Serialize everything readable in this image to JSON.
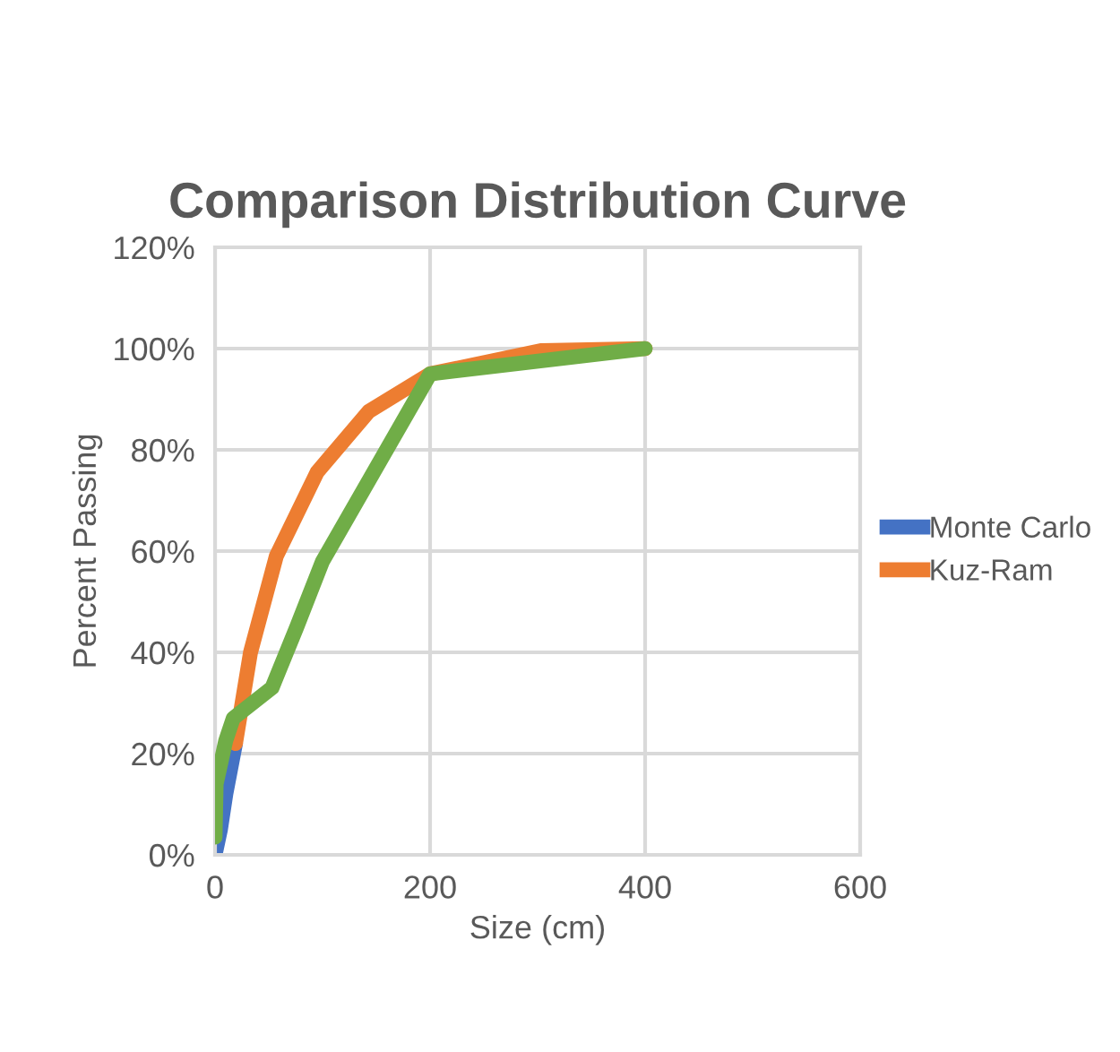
{
  "chart_data": {
    "type": "line",
    "title": "Comparison Distribution Curve",
    "xlabel": "Size (cm)",
    "ylabel": "Percent Passing",
    "series": [
      {
        "name": "Monte Carlo",
        "color": "#4472c4",
        "x": [
          0,
          5,
          10,
          19
        ],
        "values": [
          0,
          5,
          12,
          22
        ]
      },
      {
        "name": "Kuz-Ram",
        "color": "#ed7d31",
        "x": [
          19,
          33,
          57,
          95,
          143,
          200,
          304,
          400
        ],
        "values": [
          22,
          40,
          59,
          75.6,
          87.6,
          95,
          99.6,
          100
        ]
      },
      {
        "color": "#70ad47",
        "x": [
          0,
          1,
          10,
          17,
          53,
          76,
          100,
          200,
          400
        ],
        "values": [
          3.5,
          14,
          22.6,
          27,
          33,
          45,
          58,
          95,
          100
        ]
      }
    ],
    "xlim": [
      0,
      600
    ],
    "xticks": [
      0,
      200,
      400,
      600
    ],
    "ylim": [
      0,
      120
    ],
    "yticks": [
      {
        "value": 0,
        "label": "0%"
      },
      {
        "value": 20,
        "label": "20%"
      },
      {
        "value": 40,
        "label": "40%"
      },
      {
        "value": 60,
        "label": "60%"
      },
      {
        "value": 80,
        "label": "80%"
      },
      {
        "value": 100,
        "label": "100%"
      },
      {
        "value": 120,
        "label": "120%"
      }
    ],
    "grid": true,
    "legend": "right",
    "marker": "none",
    "line_style": "solid"
  }
}
